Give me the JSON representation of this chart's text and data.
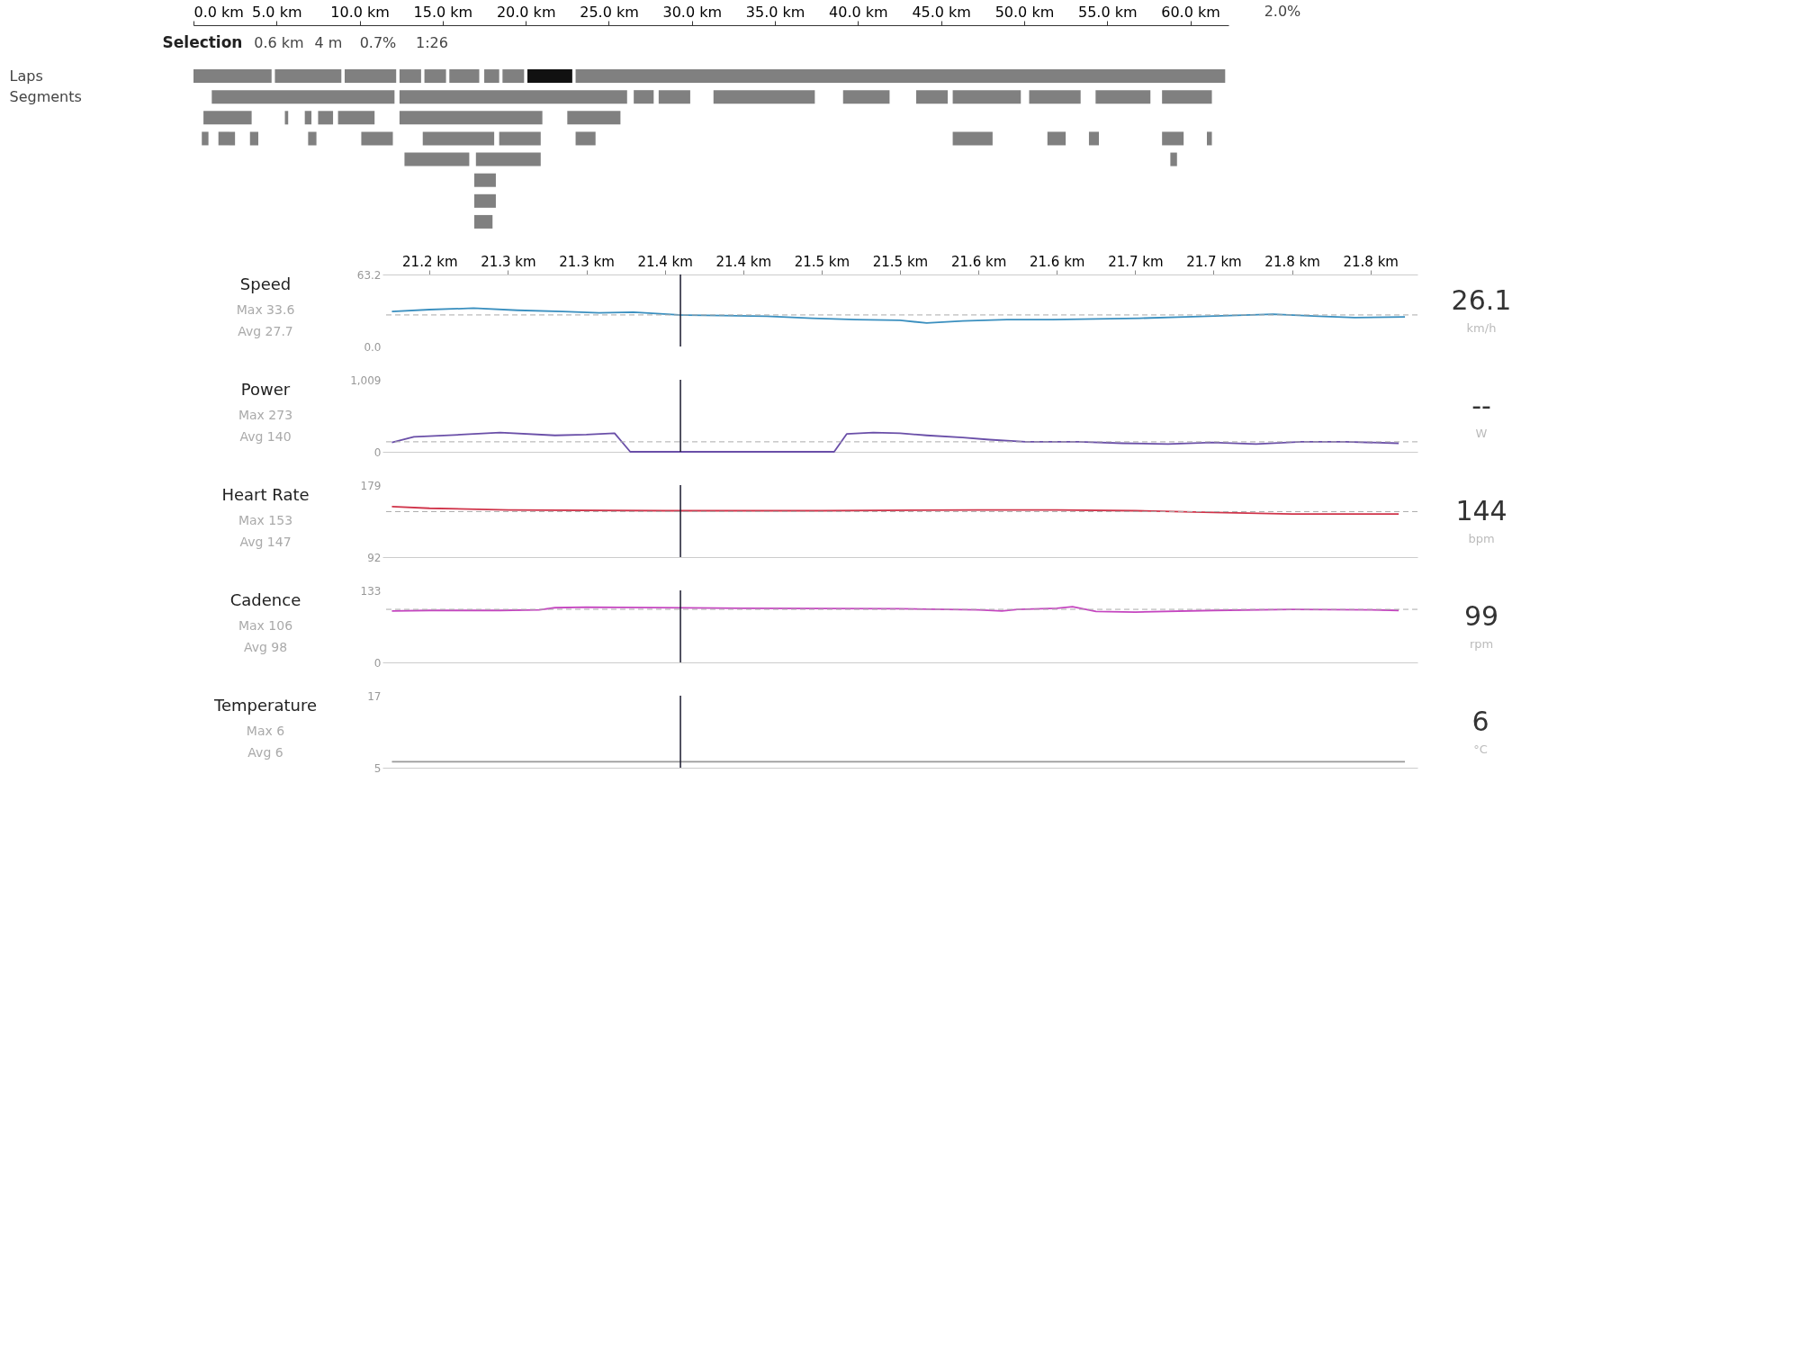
{
  "chart_data": [
    {
      "type": "bar",
      "orientation": "horizontal",
      "categories": [
        "Laps",
        "Segments",
        null,
        null,
        null,
        null,
        null,
        null
      ],
      "xlim": [
        0,
        62.3
      ],
      "xticks": [
        {
          "value": 0,
          "label": "0.0 km"
        },
        {
          "value": 5,
          "label": "5.0 km"
        },
        {
          "value": 10,
          "label": "10.0 km"
        },
        {
          "value": 15,
          "label": "15.0 km"
        },
        {
          "value": 20,
          "label": "20.0 km"
        },
        {
          "value": 25,
          "label": "25.0 km"
        },
        {
          "value": 30,
          "label": "30.0 km"
        },
        {
          "value": 35,
          "label": "35.0 km"
        },
        {
          "value": 40,
          "label": "40.0 km"
        },
        {
          "value": 45,
          "label": "45.0 km"
        },
        {
          "value": 50,
          "label": "50.0 km"
        },
        {
          "value": 55,
          "label": "55.0 km"
        },
        {
          "value": 60,
          "label": "60.0 km"
        }
      ],
      "annotations": [
        "Selection",
        "0.6 km",
        "4 m",
        "0.7%",
        "1:26",
        "2.0%"
      ],
      "series": [
        {
          "color": "#808080",
          "base": [
            0,
            1.1,
            0.6,
            0.5,
            12.7,
            16.9,
            16.9,
            16.9
          ],
          "values": [
            4.7,
            11.0,
            2.9,
            0.4,
            3.9,
            1.3,
            1.3,
            1.1
          ]
        },
        {
          "color": "#808080",
          "base": [
            4.9,
            12.4,
            5.5,
            1.5,
            17.0,
            null,
            null,
            null
          ],
          "values": [
            4.0,
            13.7,
            0.2,
            1.0,
            3.9,
            null,
            null,
            null
          ]
        },
        {
          "color": "#808080",
          "base": [
            9.1,
            26.5,
            6.7,
            3.4,
            58.8,
            null,
            null,
            null
          ],
          "values": [
            3.1,
            1.2,
            0.4,
            0.5,
            0.4,
            null,
            null,
            null
          ]
        },
        {
          "color": "#808080",
          "base": [
            12.4,
            28.0,
            7.5,
            6.9,
            null,
            null,
            null,
            null
          ],
          "values": [
            1.3,
            1.9,
            0.9,
            0.5,
            null,
            null,
            null,
            null
          ]
        },
        {
          "color": "#808080",
          "base": [
            13.9,
            31.3,
            8.7,
            10.1,
            null,
            null,
            null,
            null
          ],
          "values": [
            1.3,
            6.1,
            2.2,
            1.9,
            null,
            null,
            null,
            null
          ]
        },
        {
          "color": "#808080",
          "base": [
            15.4,
            39.1,
            12.4,
            13.8,
            null,
            null,
            null,
            null
          ],
          "values": [
            1.8,
            2.8,
            8.6,
            4.3,
            null,
            null,
            null,
            null
          ]
        },
        {
          "color": "#808080",
          "base": [
            17.5,
            43.5,
            22.5,
            18.4,
            null,
            null,
            null,
            null
          ],
          "values": [
            0.9,
            1.9,
            3.2,
            2.5,
            null,
            null,
            null,
            null
          ]
        },
        {
          "color": "#808080",
          "base": [
            18.6,
            45.7,
            null,
            23.0,
            null,
            null,
            null,
            null
          ],
          "values": [
            1.3,
            4.1,
            null,
            1.2,
            null,
            null,
            null,
            null
          ]
        },
        {
          "colors": [
            "#111111",
            "#808080",
            null,
            "#808080",
            null,
            null,
            null,
            null
          ],
          "base": [
            20.1,
            50.3,
            null,
            45.7,
            null,
            null,
            null,
            null
          ],
          "values": [
            2.7,
            3.1,
            null,
            2.4,
            null,
            null,
            null,
            null
          ]
        },
        {
          "color": "#808080",
          "base": [
            23.0,
            54.3,
            null,
            51.4,
            null,
            null,
            null,
            null
          ],
          "values": [
            39.1,
            3.3,
            null,
            1.1,
            null,
            null,
            null,
            null
          ]
        },
        {
          "color": "#808080",
          "base": [
            null,
            58.3,
            null,
            53.9,
            null,
            null,
            null,
            null
          ],
          "values": [
            null,
            3.0,
            null,
            0.6,
            null,
            null,
            null,
            null
          ]
        },
        {
          "color": "#808080",
          "base": [
            null,
            null,
            null,
            58.3,
            null,
            null,
            null,
            null
          ],
          "values": [
            null,
            null,
            null,
            1.3,
            null,
            null,
            null,
            null
          ]
        },
        {
          "color": "#808080",
          "base": [
            null,
            null,
            null,
            61.0,
            null,
            null,
            null,
            null
          ],
          "values": [
            null,
            null,
            null,
            0.3,
            null,
            null,
            null,
            null
          ]
        }
      ]
    },
    {
      "type": "line",
      "title": "Speed",
      "annotations": [
        "Max 33.6",
        "Avg 27.7",
        "26.1",
        "km/h"
      ],
      "ylim": [
        0,
        63.2
      ],
      "yticks": [
        {
          "value": 0,
          "label": "0.0"
        },
        63.2
      ],
      "xlim": [
        21.17,
        21.83
      ],
      "xticks": [
        {
          "value": 21.2,
          "label": "21.2 km"
        },
        {
          "value": 21.25,
          "label": "21.3 km"
        },
        {
          "value": 21.3,
          "label": "21.3 km"
        },
        {
          "value": 21.35,
          "label": "21.4 km"
        },
        {
          "value": 21.4,
          "label": "21.4 km"
        },
        {
          "value": 21.45,
          "label": "21.5 km"
        },
        {
          "value": 21.5,
          "label": "21.5 km"
        },
        {
          "value": 21.55,
          "label": "21.6 km"
        },
        {
          "value": 21.6,
          "label": "21.6 km"
        },
        {
          "value": 21.65,
          "label": "21.7 km"
        },
        {
          "value": 21.7,
          "label": "21.7 km"
        },
        {
          "value": 21.75,
          "label": "21.8 km"
        },
        {
          "value": 21.8,
          "label": "21.8 km"
        }
      ],
      "ref_lines": [
        {
          "axis": "y",
          "value": 27.7,
          "color": "#aaaaaa",
          "line_style": "dashed"
        },
        {
          "axis": "x",
          "value": 21.36,
          "color": "#1a1a2e"
        }
      ],
      "series": [
        {
          "color": "#3a8fbf",
          "x": [
            21.176,
            21.2,
            21.228,
            21.256,
            21.285,
            21.308,
            21.33,
            21.359,
            21.387,
            21.415,
            21.444,
            21.472,
            21.5,
            21.517,
            21.54,
            21.568,
            21.597,
            21.625,
            21.653,
            21.682,
            21.71,
            21.738,
            21.767,
            21.79,
            21.822
          ],
          "values": [
            30.7,
            32.4,
            33.6,
            31.8,
            30.7,
            29.5,
            30.1,
            27.7,
            27.1,
            26.5,
            24.8,
            23.6,
            23.0,
            20.6,
            22.4,
            23.6,
            23.6,
            24.2,
            24.8,
            25.9,
            27.1,
            28.3,
            26.5,
            25.3,
            25.9
          ]
        }
      ]
    },
    {
      "type": "line",
      "title": "Power",
      "annotations": [
        "Max 273",
        "Avg 140",
        "--",
        "W"
      ],
      "ylim": [
        0,
        1009
      ],
      "yticks": [
        0,
        {
          "value": 1009,
          "label": "1,009"
        }
      ],
      "xlim": [
        21.17,
        21.83
      ],
      "tick_labels": "y",
      "ref_lines": [
        {
          "axis": "y",
          "value": 140,
          "color": "#aaaaaa",
          "line_style": "dashed"
        },
        {
          "axis": "x",
          "value": 21.36,
          "color": "#1a1a2e"
        }
      ],
      "series": [
        {
          "color": "#6a4fa8",
          "x": [
            21.176,
            21.19,
            21.22,
            21.245,
            21.28,
            21.3,
            21.318,
            21.328,
            21.458,
            21.466,
            21.483,
            21.5,
            21.517,
            21.54,
            21.557,
            21.58,
            21.614,
            21.642,
            21.671,
            21.699,
            21.727,
            21.756,
            21.784,
            21.818
          ],
          "values": [
            130,
            210,
            240,
            270,
            230,
            240,
            260,
            0,
            0,
            250,
            270,
            260,
            230,
            200,
            170,
            140,
            140,
            120,
            110,
            130,
            110,
            140,
            140,
            120
          ]
        }
      ]
    },
    {
      "type": "line",
      "title": "Heart Rate",
      "annotations": [
        "Max 153",
        "Avg 147",
        "144",
        "bpm"
      ],
      "ylim": [
        92,
        179
      ],
      "yticks": [
        92,
        179
      ],
      "xlim": [
        21.17,
        21.83
      ],
      "tick_labels": "y",
      "ref_lines": [
        {
          "axis": "y",
          "value": 147,
          "color": "#aaaaaa",
          "line_style": "dashed"
        },
        {
          "axis": "x",
          "value": 21.36,
          "color": "#1a1a2e"
        }
      ],
      "series": [
        {
          "color": "#d0344a",
          "x": [
            21.176,
            21.2,
            21.25,
            21.35,
            21.45,
            21.55,
            21.6,
            21.65,
            21.7,
            21.75,
            21.818
          ],
          "values": [
            153,
            151,
            149,
            148,
            148,
            149,
            149,
            148,
            146,
            144,
            144
          ]
        }
      ]
    },
    {
      "type": "line",
      "title": "Cadence",
      "annotations": [
        "Max 106",
        "Avg 98",
        "99",
        "rpm"
      ],
      "ylim": [
        0,
        133
      ],
      "yticks": [
        0,
        133
      ],
      "xlim": [
        21.17,
        21.83
      ],
      "tick_labels": "y",
      "ref_lines": [
        {
          "axis": "y",
          "value": 98,
          "color": "#aaaaaa",
          "line_style": "dashed"
        },
        {
          "axis": "x",
          "value": 21.36,
          "color": "#1a1a2e"
        }
      ],
      "series": [
        {
          "color": "#c546c0",
          "x": [
            21.176,
            21.2,
            21.245,
            21.27,
            21.28,
            21.3,
            21.4,
            21.5,
            21.55,
            21.565,
            21.575,
            21.6,
            21.61,
            21.625,
            21.65,
            21.7,
            21.75,
            21.8,
            21.818
          ],
          "values": [
            95,
            96,
            96,
            97,
            101,
            102,
            100,
            99,
            97,
            95,
            98,
            100,
            103,
            94,
            93,
            96,
            98,
            97,
            96
          ]
        }
      ]
    },
    {
      "type": "line",
      "title": "Temperature",
      "annotations": [
        "Max 6",
        "Avg 6",
        "6",
        "°C"
      ],
      "ylim": [
        5,
        17
      ],
      "yticks": [
        5,
        17
      ],
      "xlim": [
        21.17,
        21.83
      ],
      "tick_labels": "y",
      "ref_lines": [
        {
          "axis": "x",
          "value": 21.36,
          "color": "#1a1a2e"
        }
      ],
      "series": [
        {
          "color": "#999999",
          "x": [
            21.176,
            21.822
          ],
          "values": [
            6,
            6
          ]
        }
      ]
    }
  ]
}
